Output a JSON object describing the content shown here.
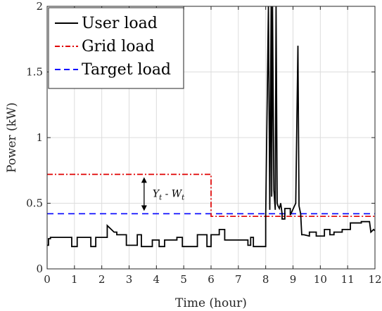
{
  "chart_data": {
    "type": "line",
    "xlabel": "Time (hour)",
    "ylabel": "Power (kW)",
    "xlim": [
      0,
      12
    ],
    "ylim": [
      0,
      2
    ],
    "x_ticks": [
      "0",
      "1",
      "2",
      "3",
      "4",
      "5",
      "6",
      "7",
      "8",
      "9",
      "10",
      "11",
      "12"
    ],
    "y_ticks": [
      "0",
      "0.5",
      "1",
      "1.5",
      "2"
    ],
    "grid": true,
    "legend_position": "top-left",
    "series": [
      {
        "name": "User load",
        "color": "#000000",
        "style": "solid",
        "x": [
          0,
          0.05,
          0.05,
          0.12,
          0.12,
          0.9,
          0.9,
          1.1,
          1.1,
          1.6,
          1.6,
          1.78,
          1.78,
          2.2,
          2.2,
          2.35,
          2.45,
          2.55,
          2.55,
          2.9,
          2.9,
          3.3,
          3.3,
          3.45,
          3.45,
          3.85,
          3.85,
          4.1,
          4.1,
          4.3,
          4.3,
          4.75,
          4.75,
          4.95,
          4.95,
          5.5,
          5.5,
          5.85,
          5.85,
          6.0,
          6.0,
          6.3,
          6.3,
          6.5,
          6.5,
          7.35,
          7.35,
          7.45,
          7.45,
          7.55,
          7.55,
          8.0,
          8.0,
          8.1,
          8.15,
          8.2,
          8.22,
          8.25,
          8.3,
          8.35,
          8.38,
          8.42,
          8.45,
          8.5,
          8.55,
          8.6,
          8.6,
          8.7,
          8.7,
          8.9,
          8.9,
          9.1,
          9.18,
          9.22,
          9.28,
          9.32,
          9.4,
          9.6,
          9.6,
          9.85,
          9.85,
          10.15,
          10.15,
          10.35,
          10.35,
          10.5,
          10.5,
          10.8,
          10.8,
          11.1,
          11.1,
          11.5,
          11.5,
          11.8,
          11.85,
          11.95,
          12.0
        ],
        "y": [
          0.18,
          0.18,
          0.23,
          0.23,
          0.24,
          0.24,
          0.17,
          0.17,
          0.24,
          0.24,
          0.17,
          0.17,
          0.24,
          0.24,
          0.33,
          0.3,
          0.28,
          0.28,
          0.26,
          0.26,
          0.18,
          0.18,
          0.26,
          0.26,
          0.17,
          0.17,
          0.22,
          0.22,
          0.17,
          0.17,
          0.22,
          0.22,
          0.24,
          0.24,
          0.17,
          0.17,
          0.26,
          0.26,
          0.17,
          0.17,
          0.26,
          0.26,
          0.3,
          0.3,
          0.22,
          0.22,
          0.18,
          0.18,
          0.24,
          0.24,
          0.17,
          0.17,
          0.4,
          2.0,
          0.45,
          2.0,
          0.55,
          2.0,
          0.6,
          0.45,
          2.0,
          0.5,
          0.48,
          0.46,
          0.5,
          0.42,
          0.38,
          0.38,
          0.46,
          0.46,
          0.41,
          0.5,
          1.7,
          0.48,
          0.42,
          0.26,
          0.26,
          0.25,
          0.28,
          0.28,
          0.25,
          0.25,
          0.3,
          0.3,
          0.26,
          0.26,
          0.28,
          0.28,
          0.3,
          0.3,
          0.35,
          0.35,
          0.36,
          0.36,
          0.28,
          0.3,
          0.29
        ]
      },
      {
        "name": "Grid load",
        "color": "#e00000",
        "style": "dashdot",
        "x": [
          0,
          6,
          6,
          12
        ],
        "y": [
          0.72,
          0.72,
          0.4,
          0.4
        ]
      },
      {
        "name": "Target load",
        "color": "#0000ff",
        "style": "dashed",
        "x": [
          0,
          12
        ],
        "y": [
          0.42,
          0.42
        ]
      }
    ],
    "annotation": {
      "text": "Y_t - W_t",
      "x": 3.55,
      "y_top": 0.72,
      "y_bottom": 0.42
    }
  }
}
